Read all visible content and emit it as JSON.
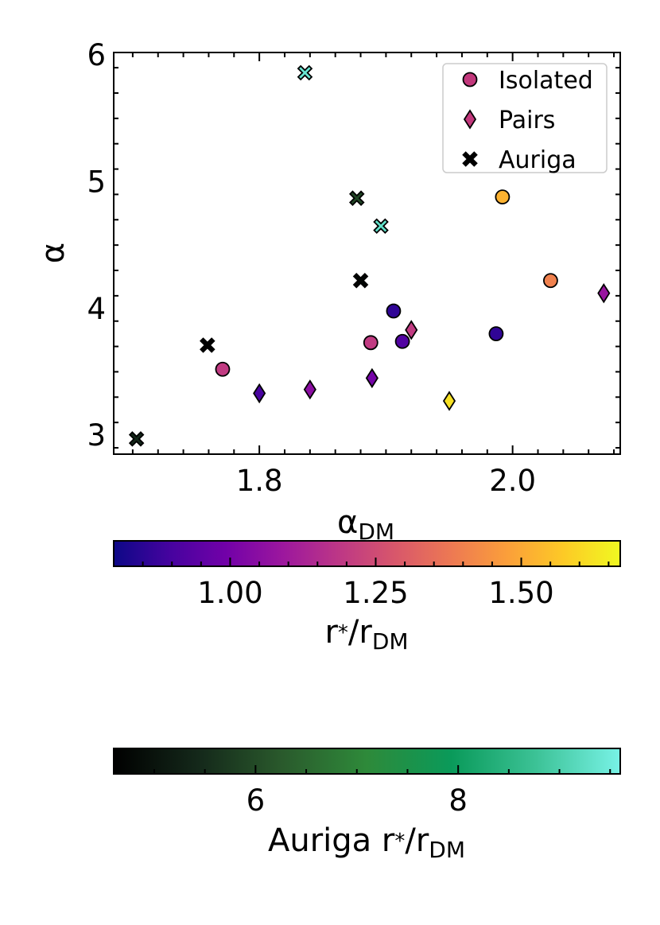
{
  "chart_data": {
    "type": "scatter",
    "title": "",
    "xlabel": "α",
    "xlabel_sub": "DM",
    "ylabel": "α",
    "xlim": [
      1.685,
      2.085
    ],
    "ylim": [
      2.85,
      6.02
    ],
    "x_ticks": [
      1.8,
      2.0
    ],
    "x_tick_labels": [
      "1.8",
      "2.0"
    ],
    "y_ticks": [
      3,
      4,
      5,
      6
    ],
    "y_tick_labels": [
      "3",
      "4",
      "5",
      "6"
    ],
    "grid": false,
    "legend_position": "top-right",
    "legend": [
      {
        "label": "Isolated",
        "marker": "circle",
        "color": "#c2387c"
      },
      {
        "label": "Pairs",
        "marker": "diamond",
        "color": "#c2387c"
      },
      {
        "label": "Auriga",
        "marker": "x",
        "color": "#000000"
      }
    ],
    "series": [
      {
        "name": "Isolated",
        "marker": "circle",
        "points": [
          {
            "x": 1.771,
            "y": 3.52,
            "color_value": 1.2
          },
          {
            "x": 1.888,
            "y": 3.73,
            "color_value": 1.2
          },
          {
            "x": 1.906,
            "y": 3.98,
            "color_value": 0.86
          },
          {
            "x": 1.913,
            "y": 3.74,
            "color_value": 0.92
          },
          {
            "x": 1.987,
            "y": 3.8,
            "color_value": 0.86
          },
          {
            "x": 1.992,
            "y": 4.88,
            "color_value": 1.52
          },
          {
            "x": 2.03,
            "y": 4.22,
            "color_value": 1.4
          }
        ]
      },
      {
        "name": "Pairs",
        "marker": "diamond",
        "points": [
          {
            "x": 1.8,
            "y": 3.33,
            "color_value": 0.9
          },
          {
            "x": 1.84,
            "y": 3.36,
            "color_value": 1.05
          },
          {
            "x": 1.889,
            "y": 3.45,
            "color_value": 1.0
          },
          {
            "x": 1.92,
            "y": 3.83,
            "color_value": 1.2
          },
          {
            "x": 1.95,
            "y": 3.27,
            "color_value": 1.62
          },
          {
            "x": 2.072,
            "y": 4.12,
            "color_value": 1.08
          }
        ]
      },
      {
        "name": "Auriga",
        "marker": "x",
        "points": [
          {
            "x": 1.703,
            "y": 2.97,
            "color_value": 5.4
          },
          {
            "x": 1.759,
            "y": 3.71,
            "color_value": 4.6
          },
          {
            "x": 1.836,
            "y": 5.86,
            "color_value": 9.4
          },
          {
            "x": 1.877,
            "y": 4.87,
            "color_value": 5.9
          },
          {
            "x": 1.88,
            "y": 4.22,
            "color_value": 4.7
          },
          {
            "x": 1.896,
            "y": 4.65,
            "color_value": 9.3
          }
        ]
      }
    ],
    "colorbars": [
      {
        "name": "primary",
        "label": "r",
        "label_sym": "*",
        "label_sep": "/r",
        "label_sub": "DM",
        "colormap": "plasma",
        "range": [
          0.8,
          1.67
        ],
        "ticks": [
          1.0,
          1.25,
          1.5
        ],
        "tick_labels": [
          "1.00",
          "1.25",
          "1.50"
        ],
        "stops": [
          "#0d0887",
          "#46039f",
          "#7201a8",
          "#9c179e",
          "#bd3786",
          "#d8576b",
          "#ed7953",
          "#fb9f3a",
          "#fdca26",
          "#f0f921"
        ]
      },
      {
        "name": "auriga",
        "label": "Auriga r",
        "label_sym": "*",
        "label_sep": "/r",
        "label_sub": "DM",
        "colormap": "dark-green-cyan",
        "range": [
          4.6,
          9.6
        ],
        "ticks": [
          6,
          8
        ],
        "tick_labels": [
          "6",
          "8"
        ],
        "stops": [
          "#000000",
          "#14281a",
          "#2a5a2c",
          "#2e8a3a",
          "#0a9a5a",
          "#3cc296",
          "#78f2e6"
        ]
      }
    ]
  }
}
